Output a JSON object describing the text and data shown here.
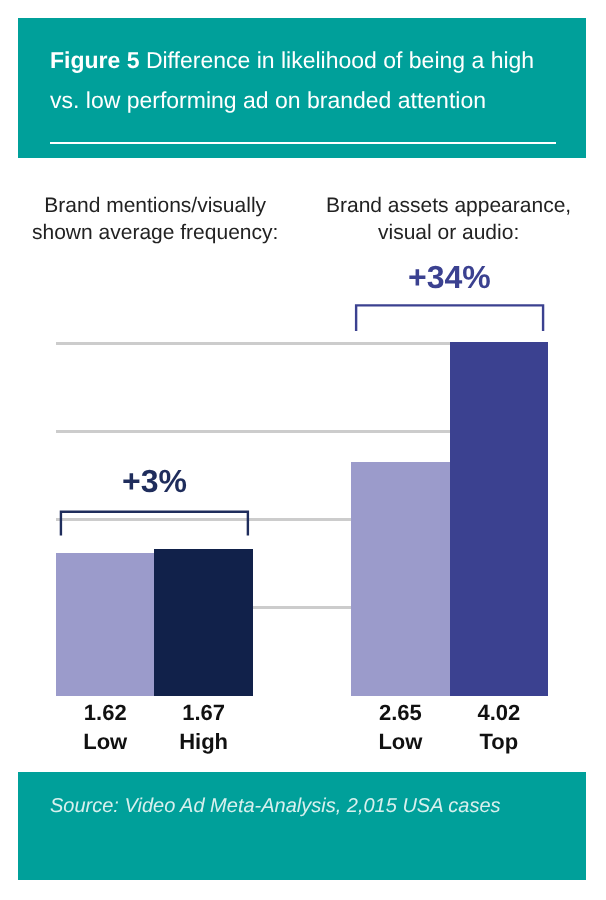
{
  "chart_data": {
    "type": "bar",
    "title": "Figure 5",
    "subtitle": "Difference in likelihood of being a high vs. low performing ad on branded attention",
    "categories": [
      "Low",
      "High",
      null,
      "Low",
      "Top"
    ],
    "values": [
      1.62,
      1.67,
      null,
      2.65,
      4.02
    ],
    "colors": [
      "#9b9bcb",
      "#11214a",
      "#ffffff",
      "#9b9bcb",
      "#3b4190"
    ],
    "data_labels": true,
    "grid": "y",
    "tick_labels": "x",
    "annotations": [
      "Brand mentions/visually shown average frequency:",
      "Brand assets appearance, visual or audio:",
      "+3%",
      "+34%",
      "Source: Video Ad Meta-Analysis, 2,015 USA cases"
    ]
  }
}
